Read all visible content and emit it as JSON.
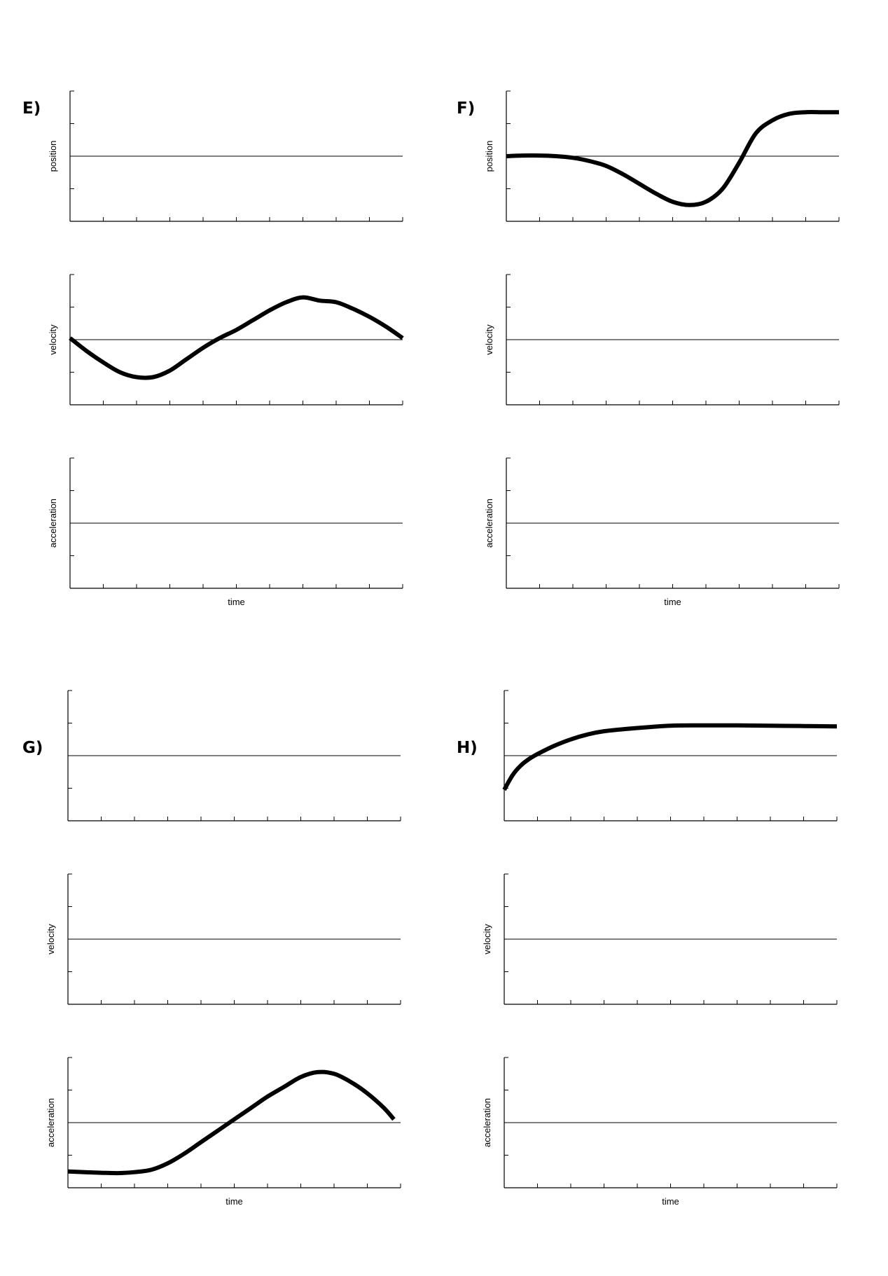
{
  "chart_data": [
    {
      "panel": "E)",
      "charts": [
        {
          "type": "line",
          "ylabel": "position",
          "xlabel": "",
          "xlim": [
            0,
            10
          ],
          "ylim": [
            -2,
            2
          ],
          "series": []
        },
        {
          "type": "line",
          "ylabel": "velocity",
          "xlabel": "",
          "xlim": [
            0,
            10
          ],
          "ylim": [
            -2,
            2
          ],
          "series": [
            {
              "x": [
                0,
                0.5,
                1,
                1.5,
                2,
                2.5,
                3,
                3.5,
                4,
                4.5,
                5,
                5.5,
                6,
                6.5,
                7,
                7.5,
                8,
                8.5,
                9,
                9.5,
                10
              ],
              "y": [
                0.05,
                -0.35,
                -0.7,
                -1.0,
                -1.15,
                -1.15,
                -0.95,
                -0.6,
                -0.25,
                0.05,
                0.3,
                0.6,
                0.9,
                1.15,
                1.3,
                1.2,
                1.15,
                0.95,
                0.7,
                0.4,
                0.05
              ]
            }
          ]
        },
        {
          "type": "line",
          "ylabel": "acceleration",
          "xlabel": "time",
          "xlim": [
            0,
            10
          ],
          "ylim": [
            -2,
            2
          ],
          "series": []
        }
      ]
    },
    {
      "panel": "F)",
      "charts": [
        {
          "type": "line",
          "ylabel": "position",
          "xlabel": "",
          "xlim": [
            0,
            10
          ],
          "ylim": [
            -2,
            2
          ],
          "series": [
            {
              "x": [
                0,
                0.5,
                1,
                1.5,
                2,
                2.5,
                3,
                3.5,
                4,
                4.5,
                5,
                5.5,
                6,
                6.5,
                7,
                7.5,
                8,
                8.5,
                9,
                9.5,
                10
              ],
              "y": [
                0.0,
                0.02,
                0.02,
                0.0,
                -0.05,
                -0.15,
                -0.3,
                -0.55,
                -0.85,
                -1.15,
                -1.4,
                -1.5,
                -1.4,
                -1.0,
                -0.2,
                0.7,
                1.1,
                1.3,
                1.35,
                1.35,
                1.35
              ]
            }
          ]
        },
        {
          "type": "line",
          "ylabel": "velocity",
          "xlabel": "",
          "xlim": [
            0,
            10
          ],
          "ylim": [
            -2,
            2
          ],
          "series": []
        },
        {
          "type": "line",
          "ylabel": "acceleration",
          "xlabel": "time",
          "xlim": [
            0,
            10
          ],
          "ylim": [
            -2,
            2
          ],
          "series": []
        }
      ]
    },
    {
      "panel": "G)",
      "charts": [
        {
          "type": "line",
          "ylabel": "",
          "xlabel": "",
          "xlim": [
            0,
            10
          ],
          "ylim": [
            -2,
            2
          ],
          "series": []
        },
        {
          "type": "line",
          "ylabel": "velocity",
          "xlabel": "",
          "xlim": [
            0,
            10
          ],
          "ylim": [
            -2,
            2
          ],
          "series": []
        },
        {
          "type": "line",
          "ylabel": "acceleration",
          "xlabel": "time",
          "xlim": [
            0,
            10
          ],
          "ylim": [
            -2,
            2
          ],
          "series": [
            {
              "x": [
                0,
                0.5,
                1,
                1.5,
                2,
                2.5,
                3,
                3.5,
                4,
                4.5,
                5,
                5.5,
                6,
                6.5,
                7,
                7.5,
                8,
                8.5,
                9,
                9.5,
                9.8
              ],
              "y": [
                -1.5,
                -1.52,
                -1.54,
                -1.55,
                -1.52,
                -1.45,
                -1.25,
                -0.95,
                -0.6,
                -0.25,
                0.1,
                0.45,
                0.8,
                1.1,
                1.4,
                1.55,
                1.5,
                1.25,
                0.9,
                0.45,
                0.1
              ]
            }
          ]
        }
      ]
    },
    {
      "panel": "H)",
      "charts": [
        {
          "type": "line",
          "ylabel": "",
          "xlabel": "",
          "xlim": [
            0,
            10
          ],
          "ylim": [
            -2,
            2
          ],
          "series": [
            {
              "x": [
                0,
                0.25,
                0.5,
                0.75,
                1,
                1.5,
                2,
                2.5,
                3,
                4,
                5,
                6,
                7,
                8,
                9,
                10
              ],
              "y": [
                -1.05,
                -0.6,
                -0.3,
                -0.1,
                0.05,
                0.3,
                0.5,
                0.65,
                0.75,
                0.85,
                0.92,
                0.93,
                0.93,
                0.92,
                0.91,
                0.9
              ]
            }
          ]
        },
        {
          "type": "line",
          "ylabel": "velocity",
          "xlabel": "",
          "xlim": [
            0,
            10
          ],
          "ylim": [
            -2,
            2
          ],
          "series": []
        },
        {
          "type": "line",
          "ylabel": "acceleration",
          "xlabel": "time",
          "xlim": [
            0,
            10
          ],
          "ylim": [
            -2,
            2
          ],
          "series": []
        }
      ]
    }
  ]
}
